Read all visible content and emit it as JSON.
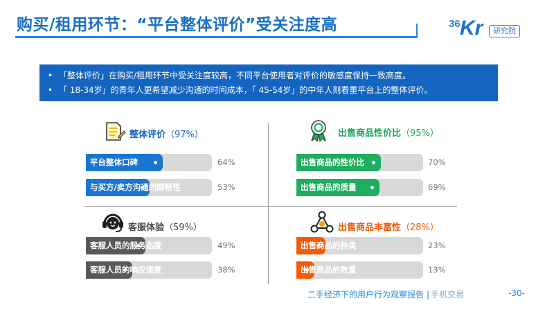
{
  "page": {
    "title": "购买/租用环节：“平台整体评价”受关注度高",
    "logo": {
      "num": "36",
      "kr": "Kr",
      "tag": "研究院"
    },
    "summary": [
      "「整体评价」在购买/租用环节中受关注度较高，不同平台使用者对评价的敏感度保持一致高度。",
      "「 18-34岁」的青年人更希望减少沟通的时间成本，「 45-54岁」的中年人则看重平台上的整体评价。"
    ],
    "footer": {
      "report": "二手经济下的用户行为观察报告",
      "separator": "|",
      "category": "手机交易"
    },
    "page_number": "-30-"
  },
  "chart_data": [
    {
      "type": "bar",
      "title": "整体评价",
      "title_pct": "（97%）",
      "color": "#1976d2",
      "icon": "document-pencil-icon",
      "categories": [
        "平台整体口碑",
        "与买方/卖方沟通的顺畅性"
      ],
      "values": [
        64,
        53
      ],
      "value_labels": [
        "64%",
        "53%"
      ],
      "xlim": [
        0,
        100
      ]
    },
    {
      "type": "bar",
      "title": "出售商品性价比",
      "title_pct": "（95%）",
      "color": "#1fad5f",
      "icon": "award-ribbon-icon",
      "categories": [
        "出售商品的性价比",
        "出售商品的质量"
      ],
      "values": [
        70,
        69
      ],
      "value_labels": [
        "70%",
        "69%"
      ],
      "xlim": [
        0,
        100
      ]
    },
    {
      "type": "bar",
      "title": "客服体验",
      "title_pct": "（59%）",
      "color": "#595959",
      "icon": "headset-icon",
      "categories": [
        "客服人员的服务态度",
        "客服人员的响应速度"
      ],
      "values": [
        49,
        38
      ],
      "value_labels": [
        "49%",
        "38%"
      ],
      "xlim": [
        0,
        100
      ]
    },
    {
      "type": "bar",
      "title": "出售商品丰富性",
      "title_pct": "（28%）",
      "color": "#f55a06",
      "icon": "product-network-icon",
      "categories": [
        "出售商品的种类",
        "出售商品的数量"
      ],
      "values": [
        23,
        13
      ],
      "value_labels": [
        "23%",
        "13%"
      ],
      "xlim": [
        0,
        100
      ]
    }
  ]
}
